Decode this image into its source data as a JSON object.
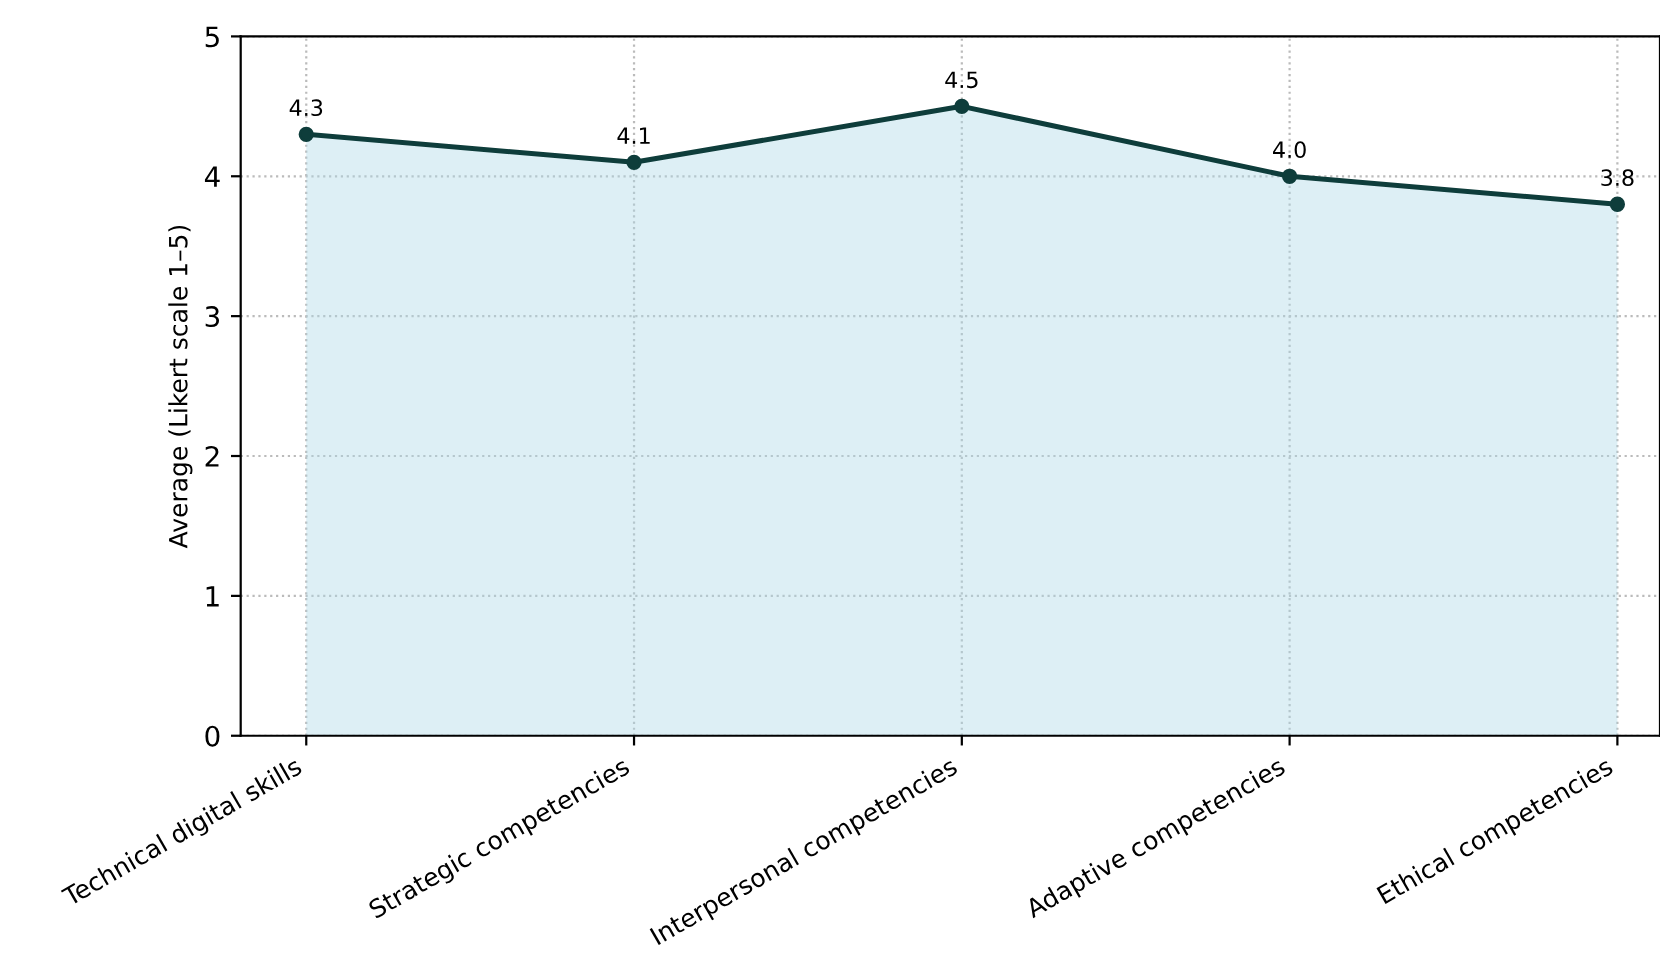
{
  "chart_data": {
    "type": "area",
    "ylabel": "Average (Likert scale 1–5)",
    "categories": [
      "Technical digital skills",
      "Strategic competencies",
      "Interpersonal competencies",
      "Adaptive competencies",
      "Ethical competencies"
    ],
    "series": [
      {
        "color": "#0e3d3b",
        "values": [
          4.3,
          4.1,
          4.5,
          4.0,
          3.8
        ],
        "value_labels": [
          "4.3",
          "4.1",
          "4.5",
          "4.0",
          "3.8"
        ]
      }
    ],
    "ylim": [
      0,
      5
    ],
    "yticks": [
      0,
      1,
      2,
      3,
      4,
      5
    ],
    "grid": true,
    "marker": "circle",
    "line_style": "solid"
  }
}
